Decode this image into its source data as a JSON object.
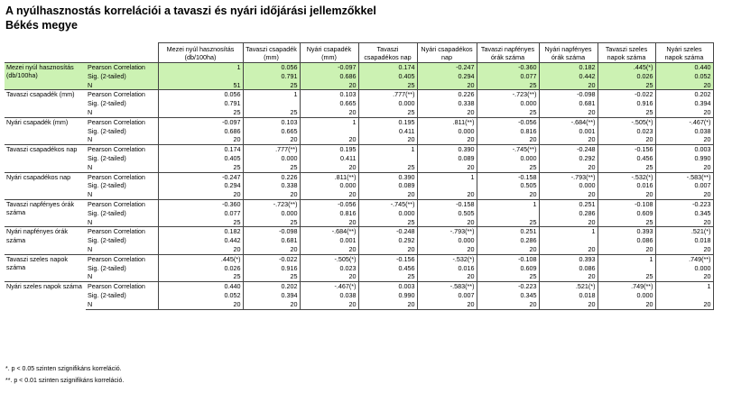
{
  "title_line1": "A nyúlhasznostás korrelációi a tavaszi és nyári időjárási jellemzőkkel",
  "title_line2": "Békés megye",
  "columns": [
    "Mezei nyúl hasznosítás (db/100ha)",
    "Tavaszi csapadék (mm)",
    "Nyári csapadék (mm)",
    "Tavaszi csapadékos nap",
    "Nyári csapadékos nap",
    "Tavaszi napfényes órák száma",
    "Nyári napfényes órák száma",
    "Tavaszi szeles napok száma",
    "Nyári szeles napok száma"
  ],
  "stat_labels": [
    "Pearson Correlation",
    "Sig. (2-tailed)",
    "N"
  ],
  "rows": [
    {
      "label": "Mezei nyúl hasznosítás (db/100ha)",
      "r": [
        "1",
        "0.056",
        "-0.097",
        "0.174",
        "-0.247",
        "-0.360",
        "0.182",
        ".445(*)",
        "0.440"
      ],
      "sig": [
        "",
        "0.791",
        "0.686",
        "0.405",
        "0.294",
        "0.077",
        "0.442",
        "0.026",
        "0.052"
      ],
      "n": [
        "51",
        "25",
        "20",
        "25",
        "20",
        "25",
        "20",
        "25",
        "20"
      ]
    },
    {
      "label": "Tavaszi csapadék (mm)",
      "r": [
        "0.056",
        "1",
        "0.103",
        ".777(**)",
        "0.226",
        "-.723(**)",
        "-0.098",
        "-0.022",
        "0.202"
      ],
      "sig": [
        "0.791",
        "",
        "0.665",
        "0.000",
        "0.338",
        "0.000",
        "0.681",
        "0.916",
        "0.394"
      ],
      "n": [
        "25",
        "25",
        "20",
        "25",
        "20",
        "25",
        "20",
        "25",
        "20"
      ]
    },
    {
      "label": "Nyári csapadék (mm)",
      "r": [
        "-0.097",
        "0.103",
        "1",
        "0.195",
        ".811(**)",
        "-0.056",
        "-.684(**)",
        "-.505(*)",
        "-.467(*)"
      ],
      "sig": [
        "0.686",
        "0.665",
        "",
        "0.411",
        "0.000",
        "0.816",
        "0.001",
        "0.023",
        "0.038"
      ],
      "n": [
        "20",
        "20",
        "20",
        "20",
        "20",
        "20",
        "20",
        "20",
        "20"
      ]
    },
    {
      "label": "Tavaszi csapadékos nap",
      "r": [
        "0.174",
        ".777(**)",
        "0.195",
        "1",
        "0.390",
        "-.745(**)",
        "-0.248",
        "-0.156",
        "0.003"
      ],
      "sig": [
        "0.405",
        "0.000",
        "0.411",
        "",
        "0.089",
        "0.000",
        "0.292",
        "0.456",
        "0.990"
      ],
      "n": [
        "25",
        "25",
        "20",
        "25",
        "20",
        "25",
        "20",
        "25",
        "20"
      ]
    },
    {
      "label": "Nyári csapadékos nap",
      "r": [
        "-0.247",
        "0.226",
        ".811(**)",
        "0.390",
        "1",
        "-0.158",
        "-.793(**)",
        "-.532(*)",
        "-.583(**)"
      ],
      "sig": [
        "0.294",
        "0.338",
        "0.000",
        "0.089",
        "",
        "0.505",
        "0.000",
        "0.016",
        "0.007"
      ],
      "n": [
        "20",
        "20",
        "20",
        "20",
        "20",
        "20",
        "20",
        "20",
        "20"
      ]
    },
    {
      "label": "Tavaszi napfényes órák száma",
      "r": [
        "-0.360",
        "-.723(**)",
        "-0.056",
        "-.745(**)",
        "-0.158",
        "1",
        "0.251",
        "-0.108",
        "-0.223"
      ],
      "sig": [
        "0.077",
        "0.000",
        "0.816",
        "0.000",
        "0.505",
        "",
        "0.286",
        "0.609",
        "0.345"
      ],
      "n": [
        "25",
        "25",
        "20",
        "25",
        "20",
        "25",
        "20",
        "25",
        "20"
      ]
    },
    {
      "label": "Nyári napfényes órák száma",
      "r": [
        "0.182",
        "-0.098",
        "-.684(**)",
        "-0.248",
        "-.793(**)",
        "0.251",
        "1",
        "0.393",
        ".521(*)"
      ],
      "sig": [
        "0.442",
        "0.681",
        "0.001",
        "0.292",
        "0.000",
        "0.286",
        "",
        "0.086",
        "0.018"
      ],
      "n": [
        "20",
        "20",
        "20",
        "20",
        "20",
        "20",
        "20",
        "20",
        "20"
      ]
    },
    {
      "label": "Tavaszi szeles napok száma",
      "r": [
        ".445(*)",
        "-0.022",
        "-.505(*)",
        "-0.156",
        "-.532(*)",
        "-0.108",
        "0.393",
        "1",
        ".749(**)"
      ],
      "sig": [
        "0.026",
        "0.916",
        "0.023",
        "0.456",
        "0.016",
        "0.609",
        "0.086",
        "",
        "0.000"
      ],
      "n": [
        "25",
        "25",
        "20",
        "25",
        "20",
        "25",
        "20",
        "25",
        "20"
      ]
    },
    {
      "label": "Nyári szeles napok száma",
      "r": [
        "0.440",
        "0.202",
        "-.467(*)",
        "0.003",
        "-.583(**)",
        "-0.223",
        ".521(*)",
        ".749(**)",
        "1"
      ],
      "sig": [
        "0.052",
        "0.394",
        "0.038",
        "0.990",
        "0.007",
        "0.345",
        "0.018",
        "0.000",
        ""
      ],
      "n": [
        "20",
        "20",
        "20",
        "20",
        "20",
        "20",
        "20",
        "20",
        "20"
      ]
    }
  ],
  "footnotes": [
    "*. p < 0.05 szinten szignifikáns korreláció.",
    "**. p < 0.01 szinten szignifikáns korreláció."
  ],
  "colors": {
    "highlight": "#ccf2b3",
    "border": "#444444"
  }
}
